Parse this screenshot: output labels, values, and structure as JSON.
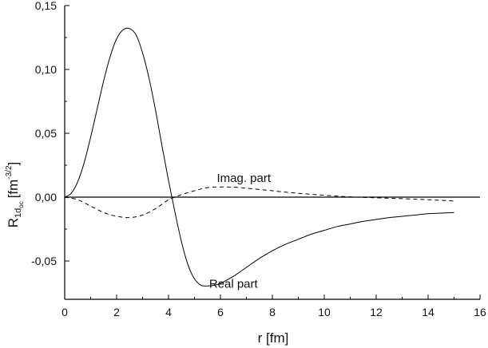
{
  "chart_data": {
    "type": "line",
    "title": "",
    "xlabel": "r [fm]",
    "ylabel": {
      "main": "R",
      "subscript": "1d",
      "sub_subscript": "oc",
      "unit_open": "[fm",
      "unit_exp": "-3/2",
      "unit_close": "]"
    },
    "xlim": [
      0,
      16
    ],
    "ylim": [
      -0.08,
      0.15
    ],
    "xticks": [
      0,
      2,
      4,
      6,
      8,
      10,
      12,
      14,
      16
    ],
    "yticks": [
      -0.05,
      0.0,
      0.05,
      0.1,
      0.15
    ],
    "ytick_labels": [
      "-0,05",
      "0,00",
      "0,05",
      "0,10",
      "0,15"
    ],
    "xtick_labels": [
      "0",
      "2",
      "4",
      "6",
      "8",
      "10",
      "12",
      "14",
      "16"
    ],
    "grid": false,
    "zero_line": true,
    "series": [
      {
        "name": "Real part",
        "style": "solid",
        "x": [
          0.0,
          0.25,
          0.5,
          0.75,
          1.0,
          1.25,
          1.5,
          1.75,
          2.0,
          2.25,
          2.5,
          2.75,
          3.0,
          3.25,
          3.5,
          3.75,
          4.0,
          4.25,
          4.5,
          4.75,
          5.0,
          5.25,
          5.5,
          5.75,
          6.0,
          6.5,
          7.0,
          7.5,
          8.0,
          8.5,
          9.0,
          9.5,
          10.0,
          10.5,
          11.0,
          11.5,
          12.0,
          12.5,
          13.0,
          13.5,
          14.0,
          14.5,
          15.0
        ],
        "y": [
          0.0,
          0.003,
          0.012,
          0.027,
          0.047,
          0.069,
          0.091,
          0.11,
          0.124,
          0.131,
          0.132,
          0.127,
          0.113,
          0.093,
          0.068,
          0.04,
          0.013,
          -0.012,
          -0.035,
          -0.053,
          -0.064,
          -0.069,
          -0.0695,
          -0.069,
          -0.0675,
          -0.062,
          -0.055,
          -0.048,
          -0.042,
          -0.037,
          -0.033,
          -0.029,
          -0.026,
          -0.023,
          -0.021,
          -0.019,
          -0.0175,
          -0.016,
          -0.015,
          -0.014,
          -0.013,
          -0.0125,
          -0.012
        ]
      },
      {
        "name": "Imag. part",
        "style": "dashed",
        "x": [
          0.0,
          0.5,
          1.0,
          1.5,
          2.0,
          2.5,
          3.0,
          3.5,
          4.0,
          4.25,
          4.5,
          5.0,
          5.5,
          6.0,
          6.5,
          7.0,
          8.0,
          9.0,
          10.0,
          11.0,
          12.0,
          13.0,
          14.0,
          15.0
        ],
        "y": [
          0.0,
          -0.002,
          -0.007,
          -0.012,
          -0.015,
          -0.016,
          -0.014,
          -0.009,
          -0.002,
          0.0,
          0.002,
          0.005,
          0.0075,
          0.008,
          0.0078,
          0.007,
          0.005,
          0.003,
          0.0015,
          0.0002,
          -0.0005,
          -0.0012,
          -0.002,
          -0.003
        ]
      }
    ],
    "annotations": [
      {
        "text": "Imag. part",
        "x": 6.9,
        "y": 0.012
      },
      {
        "text": "Real part",
        "x": 6.5,
        "y": -0.071
      }
    ]
  }
}
